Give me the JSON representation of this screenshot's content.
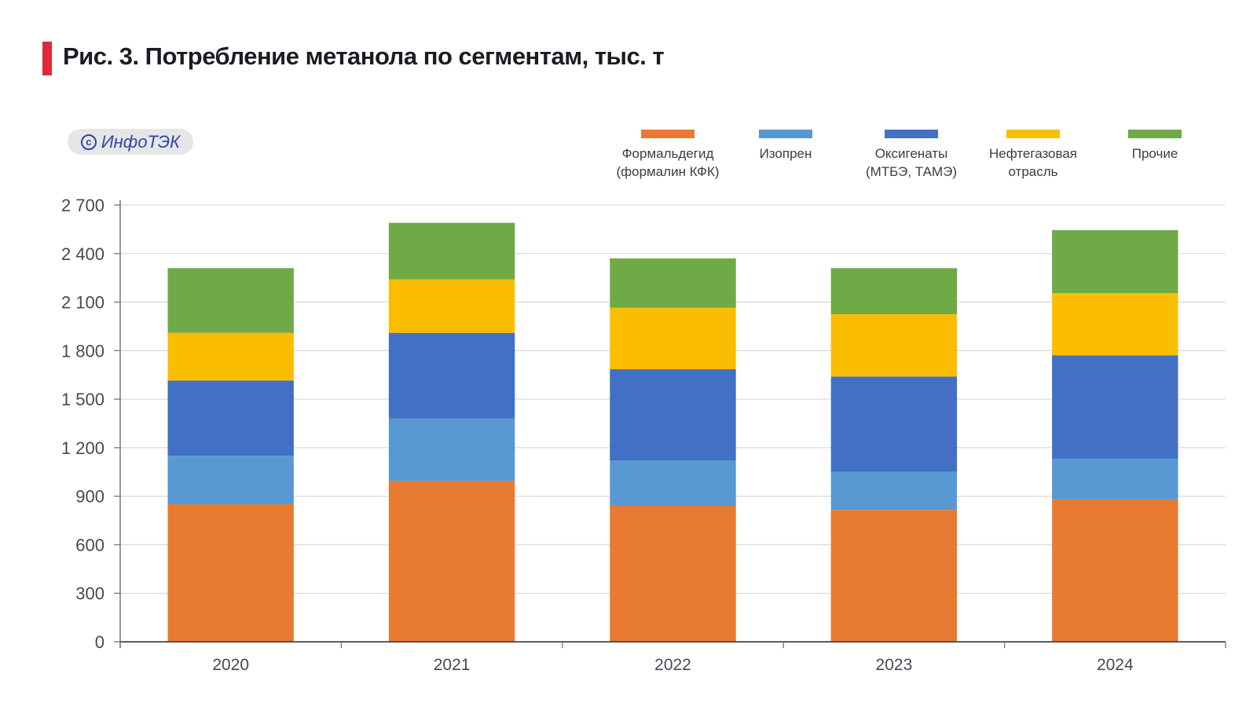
{
  "title": "Рис. 3. Потребление метанола по сегментам, тыс. т",
  "badge": {
    "icon": "copyright-icon",
    "symbol": "©",
    "text": "ИнфоТЭК"
  },
  "colors": {
    "accent_bar": "#e0283a",
    "badge_text": "#2b4aa0"
  },
  "chart_data": {
    "type": "bar",
    "stacked": true,
    "title": "Рис. 3. Потребление метанола по сегментам, тыс. т",
    "xlabel": "",
    "ylabel": "",
    "categories": [
      "2020",
      "2021",
      "2022",
      "2023",
      "2024"
    ],
    "ylim": [
      0,
      2700
    ],
    "yticks": [
      0,
      300,
      600,
      900,
      1200,
      1500,
      1800,
      2100,
      2400,
      2700
    ],
    "ytick_labels": [
      "0",
      "300",
      "600",
      "900",
      "1 200",
      "1 500",
      "1 800",
      "2 100",
      "2 400",
      "2 700"
    ],
    "grid": true,
    "legend_position": "top-right",
    "series": [
      {
        "name": "Формальдегид\n(формалин КФК)",
        "color": "#e87a31",
        "values": [
          850,
          995,
          840,
          815,
          880
        ]
      },
      {
        "name": "Изопрен",
        "color": "#5899d4",
        "values": [
          300,
          385,
          280,
          235,
          250
        ]
      },
      {
        "name": "Оксигенаты\n(МТБЭ, ТАМЭ)",
        "color": "#4270c4",
        "values": [
          465,
          530,
          565,
          590,
          640
        ]
      },
      {
        "name": "Нефтегазовая\nотрасль",
        "color": "#fbbd00",
        "values": [
          295,
          330,
          380,
          385,
          385
        ]
      },
      {
        "name": "Прочие",
        "color": "#6faa46",
        "values": [
          400,
          350,
          305,
          285,
          390
        ]
      }
    ]
  }
}
